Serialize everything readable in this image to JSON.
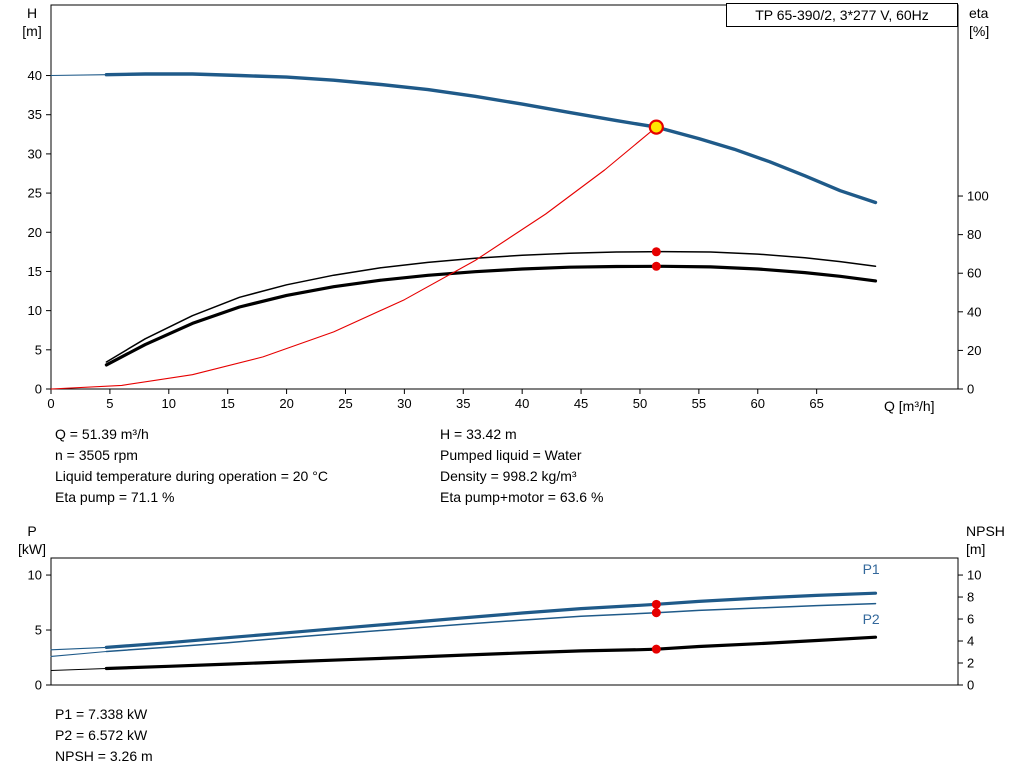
{
  "colors": {
    "blue": "#1f5a89",
    "black": "#000000",
    "red": "#e60000",
    "marker_yellow": "#ffe400",
    "blue_label": "#33689b"
  },
  "info": {
    "top_left": [
      "Q = 51.39 m³/h",
      "n = 3505 rpm",
      "Liquid temperature during operation = 20 °C",
      "Eta pump = 71.1 %"
    ],
    "top_right": [
      "H = 33.42 m",
      "Pumped liquid = Water",
      "Density = 998.2 kg/m³",
      "Eta pump+motor = 63.6 %"
    ],
    "bottom": [
      "P1 = 7.338 kW",
      "P2 = 6.572 kW",
      "NPSH = 3.26 m"
    ]
  },
  "chart_data": [
    {
      "name": "hq-eta-chart",
      "type": "line",
      "title": "TP 65-390/2, 3*277 V, 60Hz",
      "x_label": "Q [m³/h]",
      "y_left_label": [
        "H",
        "[m]"
      ],
      "y_right_label": [
        "eta",
        "[%]"
      ],
      "x_axis": {
        "min": 0,
        "max": 77,
        "ticks": [
          0,
          5,
          10,
          15,
          20,
          25,
          30,
          35,
          40,
          45,
          50,
          55,
          60,
          65
        ]
      },
      "left_axis": {
        "min": 0,
        "max": 49,
        "ticks": [
          0,
          5,
          10,
          15,
          20,
          25,
          30,
          35,
          40
        ]
      },
      "right_axis": {
        "min": 0,
        "max": 199,
        "ticks": [
          0,
          20,
          40,
          60,
          80,
          100
        ]
      },
      "series": [
        {
          "name": "hq-curve-lead",
          "color": "blue",
          "width": 1.1,
          "axis": "left",
          "points": [
            [
              0,
              40.0
            ],
            [
              4.7,
              40.1
            ]
          ]
        },
        {
          "name": "hq-curve",
          "color": "blue",
          "width": 3.4,
          "axis": "left",
          "points": [
            [
              4.7,
              40.1
            ],
            [
              8,
              40.2
            ],
            [
              12,
              40.2
            ],
            [
              16,
              40.0
            ],
            [
              20,
              39.8
            ],
            [
              24,
              39.4
            ],
            [
              28,
              38.85
            ],
            [
              32,
              38.2
            ],
            [
              36,
              37.35
            ],
            [
              40,
              36.35
            ],
            [
              44,
              35.3
            ],
            [
              48,
              34.25
            ],
            [
              51.39,
              33.42
            ],
            [
              55,
              31.95
            ],
            [
              58,
              30.6
            ],
            [
              61,
              29.0
            ],
            [
              64,
              27.2
            ],
            [
              67,
              25.3
            ],
            [
              70,
              23.8
            ]
          ]
        },
        {
          "name": "eta-pump-curve",
          "color": "black",
          "width": 1.5,
          "axis": "right",
          "points": [
            [
              4.7,
              14
            ],
            [
              8,
              26
            ],
            [
              12,
              38
            ],
            [
              16,
              47.5
            ],
            [
              20,
              54
            ],
            [
              24,
              59
            ],
            [
              28,
              62.8
            ],
            [
              32,
              65.6
            ],
            [
              36,
              67.8
            ],
            [
              40,
              69.3
            ],
            [
              44,
              70.4
            ],
            [
              48,
              71.0
            ],
            [
              52,
              71.2
            ],
            [
              56,
              71.0
            ],
            [
              60,
              69.9
            ],
            [
              64,
              68.0
            ],
            [
              67,
              66.0
            ],
            [
              70,
              63.6
            ]
          ]
        },
        {
          "name": "eta-pump-motor-curve",
          "color": "black",
          "width": 3.2,
          "axis": "right",
          "points": [
            [
              4.7,
              12.5
            ],
            [
              8,
              23
            ],
            [
              12,
              34
            ],
            [
              16,
              42.5
            ],
            [
              20,
              48.5
            ],
            [
              24,
              53
            ],
            [
              28,
              56.4
            ],
            [
              32,
              58.9
            ],
            [
              36,
              60.8
            ],
            [
              40,
              62.2
            ],
            [
              44,
              63.1
            ],
            [
              48,
              63.5
            ],
            [
              52,
              63.6
            ],
            [
              56,
              63.3
            ],
            [
              60,
              62.2
            ],
            [
              64,
              60.3
            ],
            [
              67,
              58.4
            ],
            [
              70,
              56.0
            ]
          ]
        },
        {
          "name": "system-curve",
          "color": "red",
          "width": 1.1,
          "axis": "left",
          "points": [
            [
              0,
              0
            ],
            [
              6,
              0.46
            ],
            [
              12,
              1.82
            ],
            [
              18,
              4.1
            ],
            [
              24,
              7.29
            ],
            [
              30,
              11.39
            ],
            [
              36,
              16.4
            ],
            [
              42,
              22.33
            ],
            [
              47,
              27.95
            ],
            [
              51.39,
              33.42
            ]
          ]
        }
      ],
      "markers": [
        {
          "name": "duty-point-marker",
          "type": "duty",
          "axis": "left",
          "x": 51.39,
          "y": 33.42
        },
        {
          "name": "eta-pump-duty-dot",
          "type": "dot",
          "axis": "right",
          "x": 51.39,
          "y": 71.1
        },
        {
          "name": "eta-pump-motor-duty-dot",
          "type": "dot",
          "axis": "right",
          "x": 51.39,
          "y": 63.6
        }
      ],
      "annotations": []
    },
    {
      "name": "power-npsh-chart",
      "type": "line",
      "x_label": "",
      "y_left_label": [
        "P",
        "[kW]"
      ],
      "y_right_label": [
        "NPSH",
        "[m]"
      ],
      "x_axis": {
        "min": 0,
        "max": 77,
        "ticks": []
      },
      "left_axis": {
        "min": 0,
        "max": 11.55,
        "ticks": [
          0,
          5,
          10
        ]
      },
      "right_axis": {
        "min": 0,
        "max": 11.55,
        "ticks": [
          0,
          2,
          4,
          6,
          8,
          10
        ]
      },
      "series": [
        {
          "name": "p1-curve-lead",
          "color": "blue",
          "width": 1.1,
          "axis": "left",
          "points": [
            [
              0,
              3.2
            ],
            [
              4.7,
              3.42
            ]
          ]
        },
        {
          "name": "p2-curve-lead",
          "color": "blue",
          "width": 1.1,
          "axis": "left",
          "points": [
            [
              0,
              2.6
            ],
            [
              4.7,
              3.05
            ]
          ]
        },
        {
          "name": "npsh-curve-lead",
          "color": "black",
          "width": 1.1,
          "axis": "left",
          "points": [
            [
              0,
              1.32
            ],
            [
              4.7,
              1.5
            ]
          ]
        },
        {
          "name": "p1-curve",
          "color": "blue",
          "width": 3.2,
          "axis": "left",
          "points": [
            [
              4.7,
              3.42
            ],
            [
              10,
              3.85
            ],
            [
              15,
              4.3
            ],
            [
              20,
              4.75
            ],
            [
              25,
              5.2
            ],
            [
              30,
              5.65
            ],
            [
              35,
              6.1
            ],
            [
              40,
              6.55
            ],
            [
              45,
              6.95
            ],
            [
              50,
              7.25
            ],
            [
              51.39,
              7.338
            ],
            [
              55,
              7.6
            ],
            [
              60,
              7.9
            ],
            [
              65,
              8.15
            ],
            [
              70,
              8.35
            ]
          ]
        },
        {
          "name": "p2-curve",
          "color": "blue",
          "width": 1.5,
          "axis": "left",
          "points": [
            [
              4.7,
              3.05
            ],
            [
              10,
              3.45
            ],
            [
              15,
              3.85
            ],
            [
              20,
              4.3
            ],
            [
              25,
              4.72
            ],
            [
              30,
              5.12
            ],
            [
              35,
              5.52
            ],
            [
              40,
              5.9
            ],
            [
              45,
              6.25
            ],
            [
              50,
              6.5
            ],
            [
              51.39,
              6.572
            ],
            [
              55,
              6.78
            ],
            [
              60,
              7.0
            ],
            [
              65,
              7.22
            ],
            [
              70,
              7.4
            ]
          ]
        },
        {
          "name": "npsh-curve",
          "color": "black",
          "width": 3.2,
          "axis": "left",
          "points": [
            [
              4.7,
              1.5
            ],
            [
              10,
              1.7
            ],
            [
              15,
              1.9
            ],
            [
              20,
              2.1
            ],
            [
              25,
              2.3
            ],
            [
              30,
              2.5
            ],
            [
              35,
              2.72
            ],
            [
              40,
              2.92
            ],
            [
              45,
              3.1
            ],
            [
              50,
              3.21
            ],
            [
              51.39,
              3.26
            ],
            [
              55,
              3.5
            ],
            [
              60,
              3.76
            ],
            [
              65,
              4.05
            ],
            [
              70,
              4.35
            ]
          ]
        }
      ],
      "markers": [
        {
          "name": "p1-duty-dot",
          "type": "dot",
          "axis": "left",
          "x": 51.39,
          "y": 7.338
        },
        {
          "name": "p2-duty-dot",
          "type": "dot",
          "axis": "left",
          "x": 51.39,
          "y": 6.572
        },
        {
          "name": "npsh-duty-dot",
          "type": "dot",
          "axis": "left",
          "x": 51.39,
          "y": 3.26
        }
      ],
      "annotations": [
        {
          "name": "p1-label",
          "text": "P1",
          "x": 68.9,
          "y": 10.1,
          "color": "blue_label"
        },
        {
          "name": "p2-label",
          "text": "P2",
          "x": 68.9,
          "y": 5.55,
          "color": "blue_label"
        }
      ]
    }
  ]
}
